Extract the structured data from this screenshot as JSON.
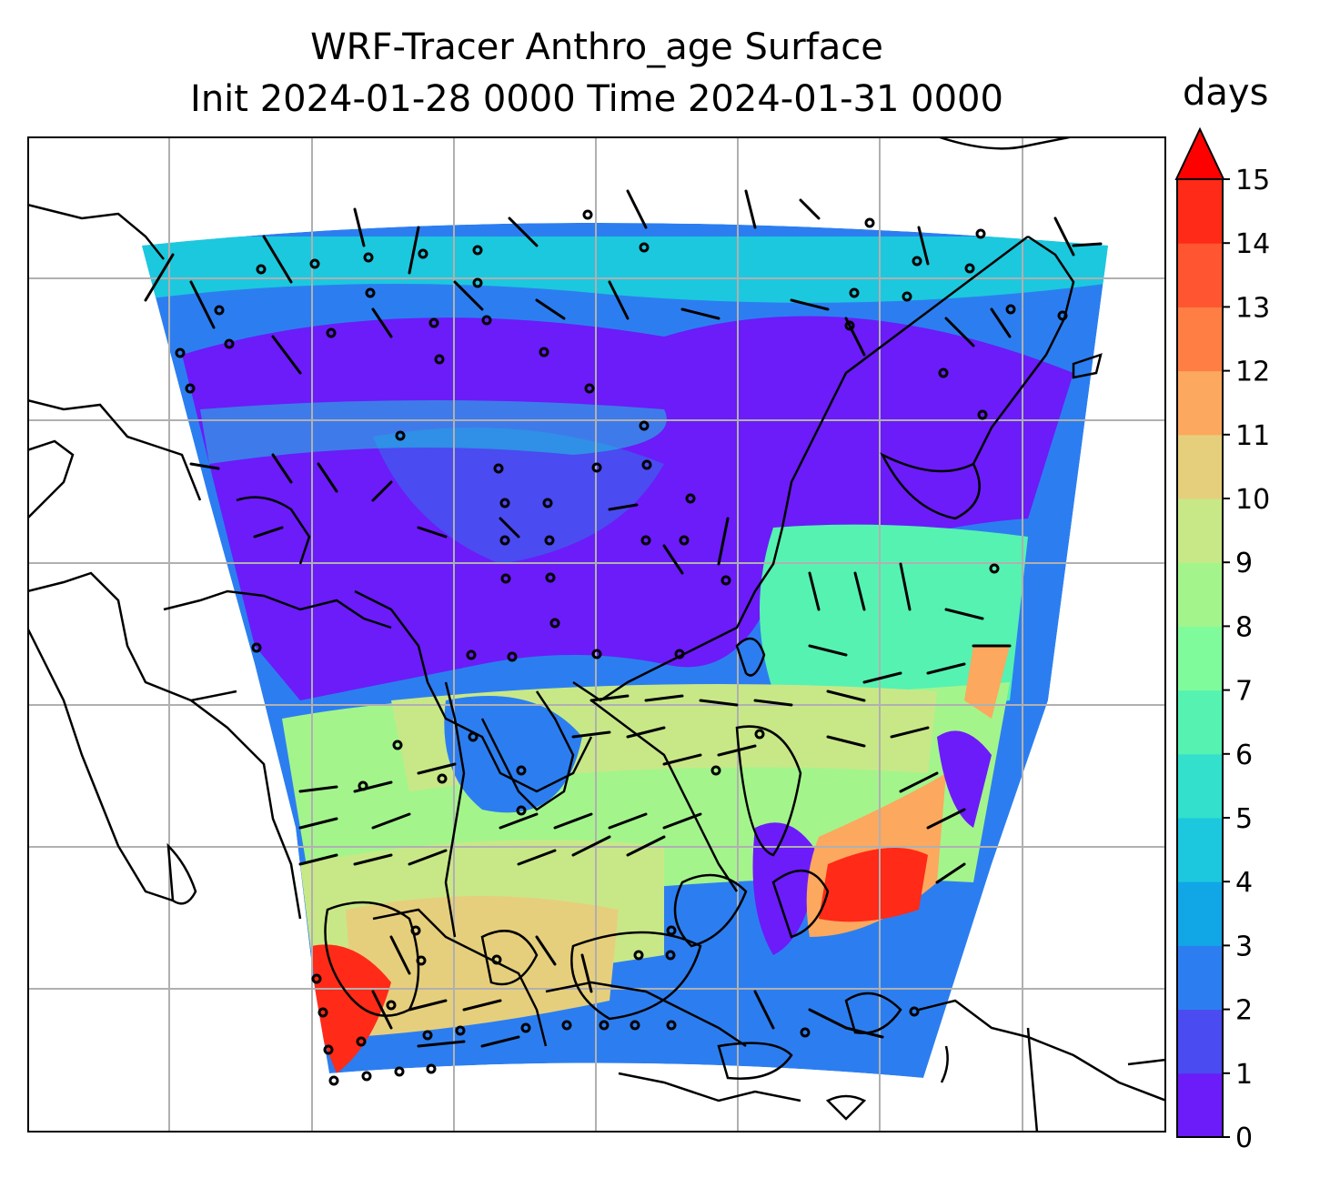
{
  "title": {
    "line1": "WRF-Tracer Anthro_age Surface",
    "line2": "Init 2024-01-28 0000 Time 2024-01-31 0000"
  },
  "colorbar": {
    "label": "days",
    "ticks": [
      "0",
      "1",
      "2",
      "3",
      "4",
      "5",
      "6",
      "7",
      "8",
      "9",
      "10",
      "11",
      "12",
      "13",
      "14",
      "15"
    ],
    "colors": [
      "#6b1cf8",
      "#4a4bf0",
      "#2c7ef0",
      "#11a6e6",
      "#1cc8de",
      "#33e0cc",
      "#56f2b2",
      "#80fb9c",
      "#a4f48c",
      "#c8e888",
      "#e6cf7c",
      "#fca85e",
      "#ff7e44",
      "#ff5530",
      "#ff2a18"
    ],
    "extend_color": "#ff0000"
  },
  "colors": {
    "coastline": "#000000",
    "gridline": "#b0b0b0"
  }
}
